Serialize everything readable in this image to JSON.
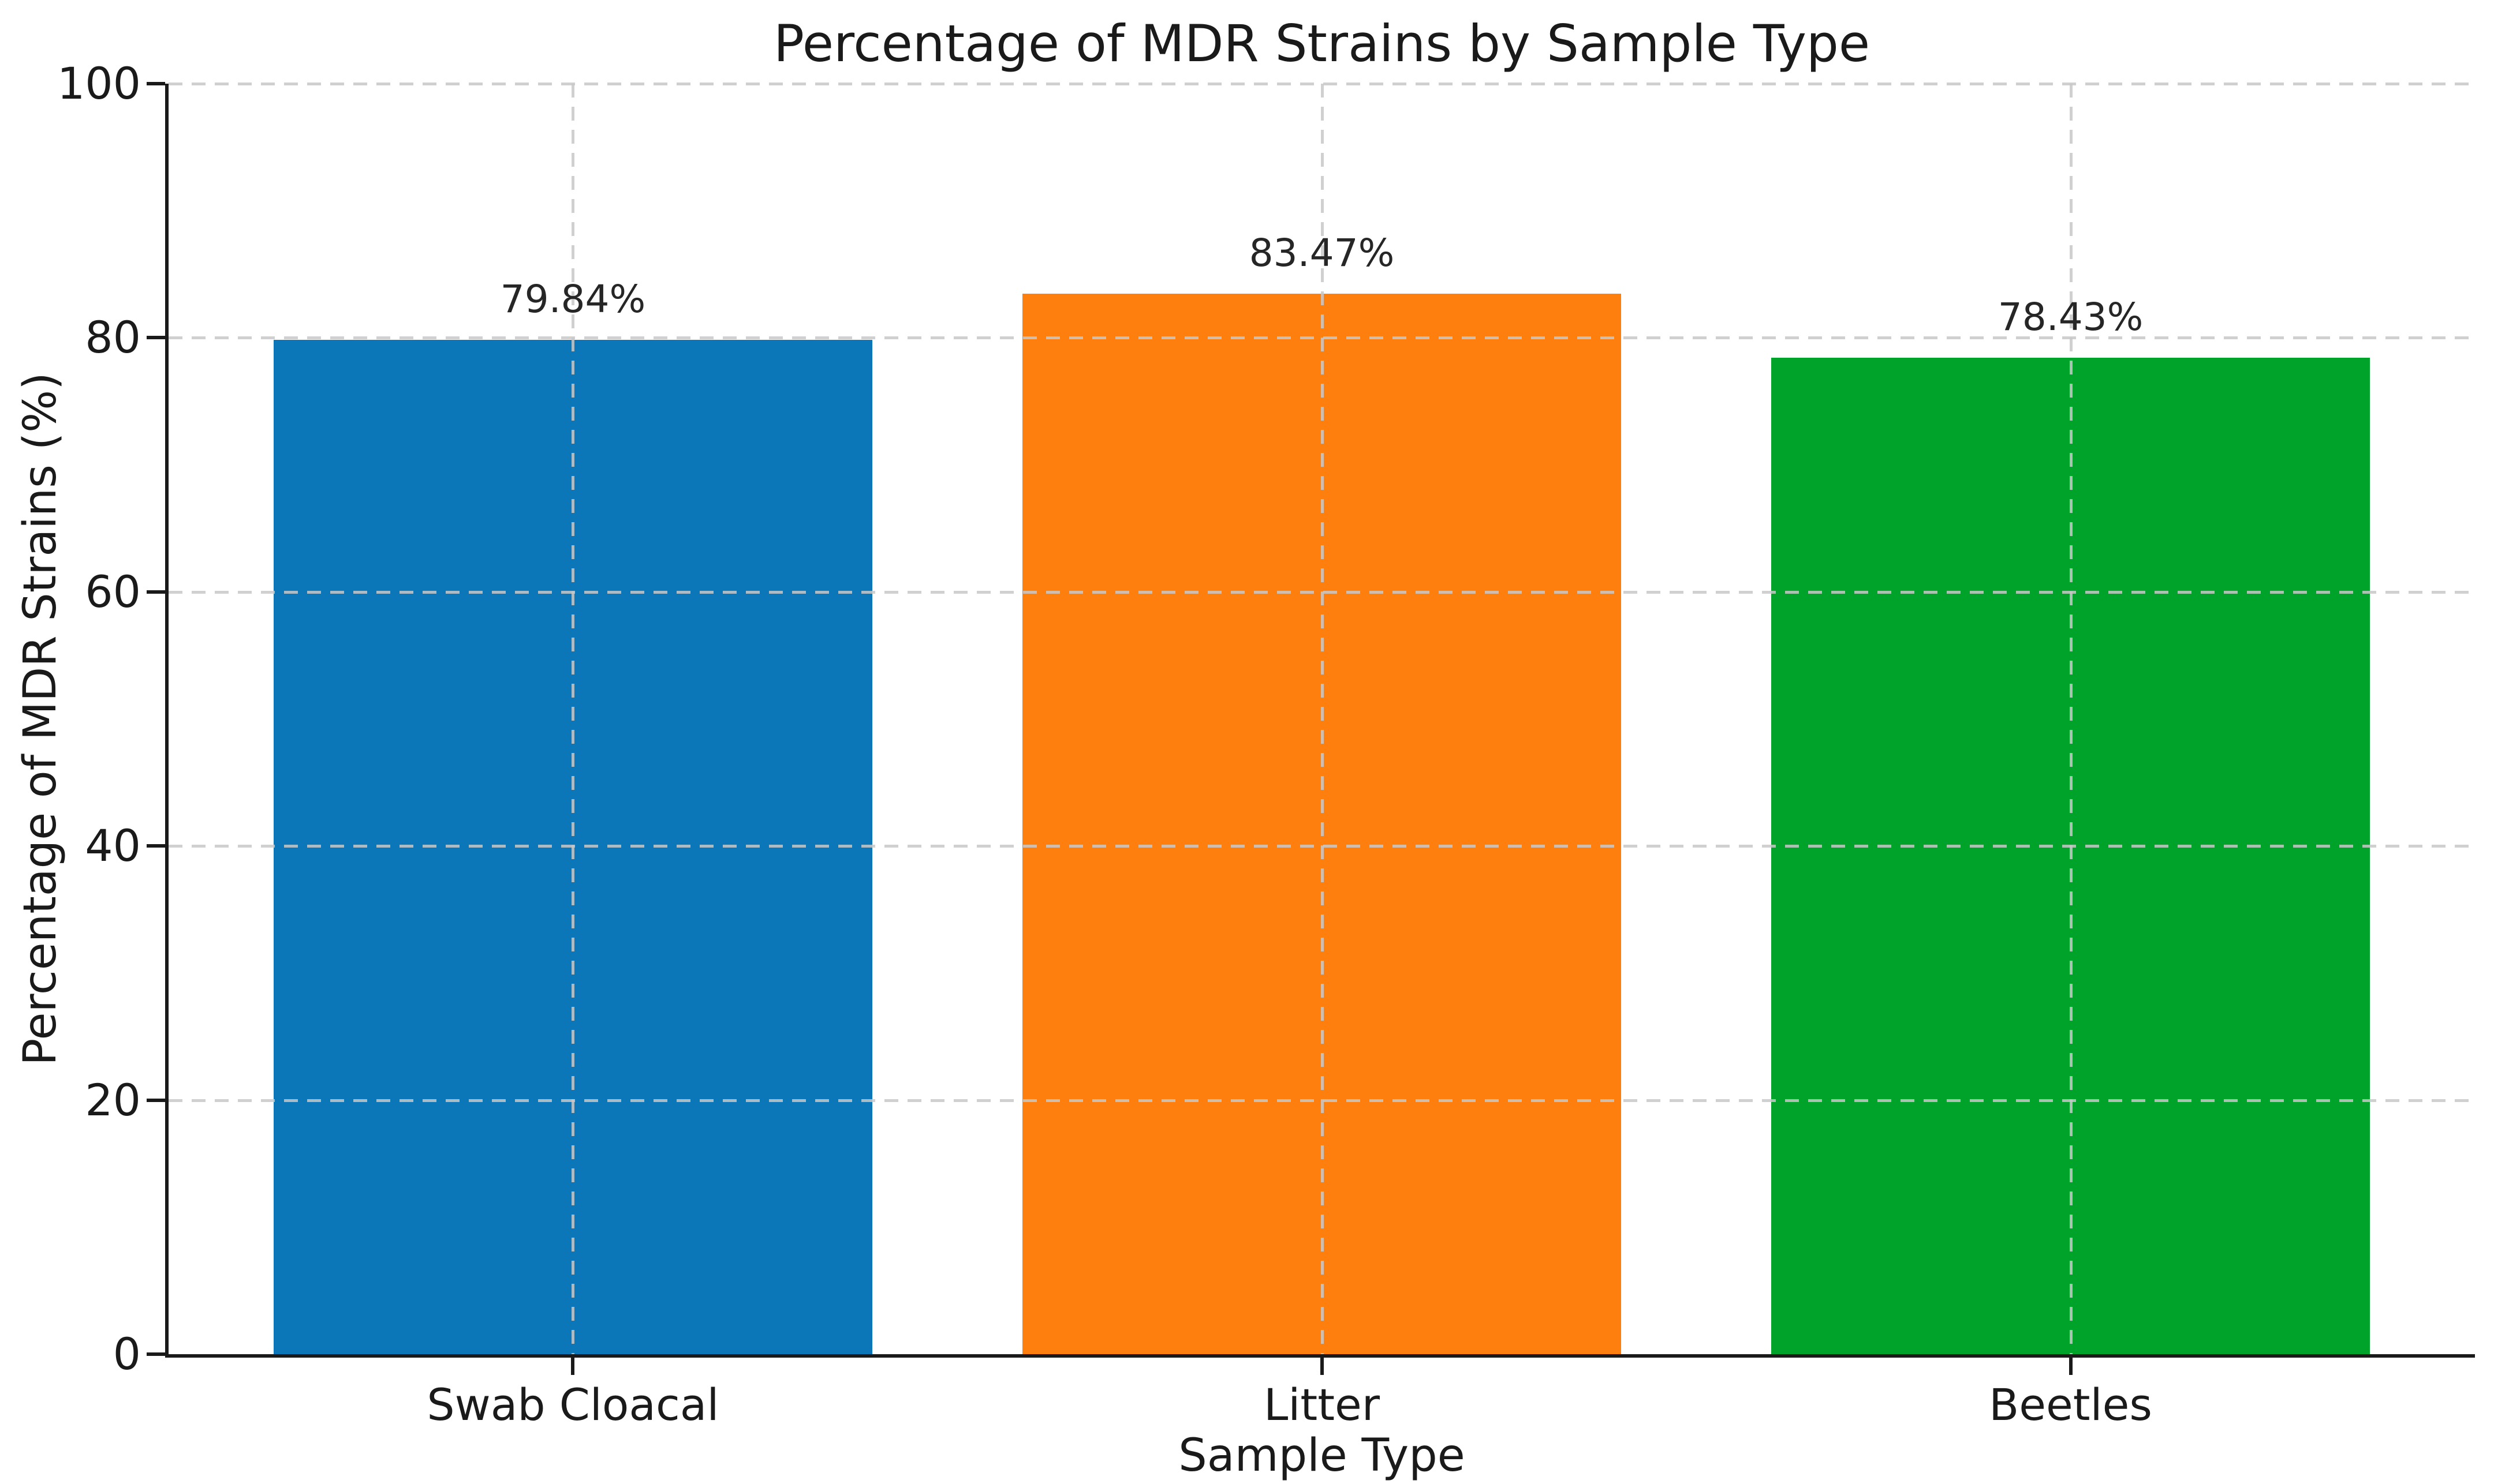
{
  "figure": {
    "background_color": "#ffffff",
    "text_color": "#1a1a1a",
    "axis_color": "#1a1a1a",
    "grid_color": "#c8c8c8"
  },
  "chart_data": {
    "type": "bar",
    "title": "Percentage of MDR Strains by Sample Type",
    "xlabel": "Sample Type",
    "ylabel": "Percentage of MDR Strains (%)",
    "categories": [
      "Swab Cloacal",
      "Litter",
      "Beetles"
    ],
    "values": [
      79.84,
      83.47,
      78.43
    ],
    "value_labels": [
      "79.84%",
      "83.47%",
      "78.43%"
    ],
    "bar_colors": [
      "#0b76b8",
      "#ff7f0e",
      "#00a32a"
    ],
    "ylim": [
      0,
      100
    ],
    "yticks": [
      0,
      20,
      40,
      60,
      80,
      100
    ],
    "ytick_labels": [
      "0",
      "20",
      "40",
      "60",
      "80",
      "100"
    ],
    "grid": {
      "style": "dashed",
      "horizontal": true,
      "vertical": true,
      "drawn_over_bars": true
    },
    "legend_position": "none",
    "spines": [
      "left",
      "bottom"
    ]
  }
}
